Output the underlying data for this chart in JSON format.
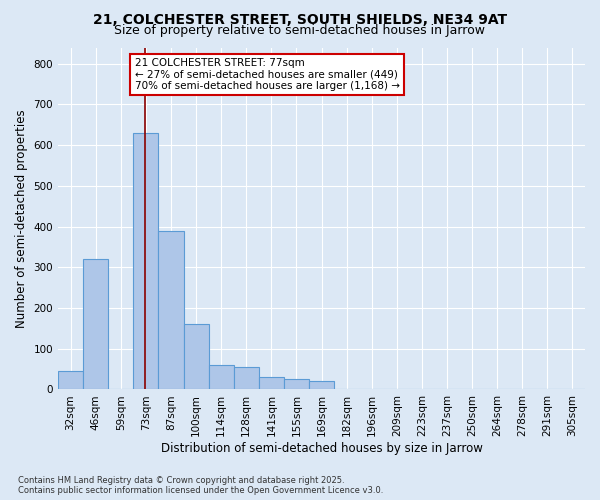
{
  "title_line1": "21, COLCHESTER STREET, SOUTH SHIELDS, NE34 9AT",
  "title_line2": "Size of property relative to semi-detached houses in Jarrow",
  "xlabel": "Distribution of semi-detached houses by size in Jarrow",
  "ylabel": "Number of semi-detached properties",
  "footnote": "Contains HM Land Registry data © Crown copyright and database right 2025.\nContains public sector information licensed under the Open Government Licence v3.0.",
  "bar_labels": [
    "32sqm",
    "46sqm",
    "59sqm",
    "73sqm",
    "87sqm",
    "100sqm",
    "114sqm",
    "128sqm",
    "141sqm",
    "155sqm",
    "169sqm",
    "182sqm",
    "196sqm",
    "209sqm",
    "223sqm",
    "237sqm",
    "250sqm",
    "264sqm",
    "278sqm",
    "291sqm",
    "305sqm"
  ],
  "bar_values": [
    45,
    320,
    0,
    630,
    390,
    160,
    60,
    55,
    30,
    25,
    20,
    0,
    0,
    0,
    0,
    0,
    0,
    0,
    0,
    0,
    0
  ],
  "bar_color": "#aec6e8",
  "bar_edge_color": "#5b9bd5",
  "red_line_index": 3,
  "red_line_color": "#8b0000",
  "annotation_text": "21 COLCHESTER STREET: 77sqm\n← 27% of semi-detached houses are smaller (449)\n70% of semi-detached houses are larger (1,168) →",
  "annotation_box_facecolor": "#ffffff",
  "annotation_box_edgecolor": "#cc0000",
  "ylim": [
    0,
    840
  ],
  "yticks": [
    0,
    100,
    200,
    300,
    400,
    500,
    600,
    700,
    800
  ],
  "background_color": "#dce8f5",
  "grid_color": "#ffffff",
  "title_fontsize": 10,
  "subtitle_fontsize": 9,
  "axis_label_fontsize": 8.5,
  "tick_fontsize": 7.5,
  "annotation_fontsize": 7.5,
  "footnote_fontsize": 6
}
